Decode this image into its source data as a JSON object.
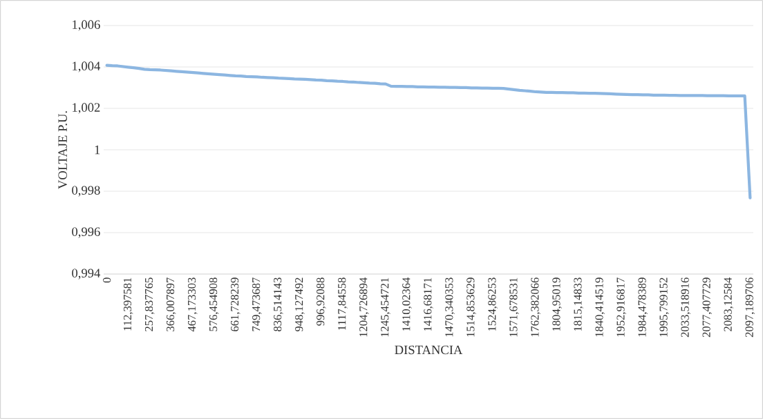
{
  "chart_data": {
    "type": "line",
    "xlabel": "DISTANCIA",
    "ylabel": "VOLTAJE P.U.",
    "categories": [
      "0",
      null,
      null,
      null,
      "112,397581",
      null,
      null,
      null,
      "257,837765",
      null,
      null,
      null,
      "366,007897",
      null,
      null,
      null,
      "467,173303",
      null,
      null,
      null,
      "576,454908",
      null,
      null,
      null,
      "661,728239",
      null,
      null,
      null,
      "749,473687",
      null,
      null,
      null,
      "836,514143",
      null,
      null,
      null,
      "948,127492",
      null,
      null,
      null,
      "996,92088",
      null,
      null,
      null,
      "1117,84558",
      null,
      null,
      null,
      "1204,726894",
      null,
      null,
      null,
      "1245,454721",
      null,
      null,
      null,
      "1410,02364",
      null,
      null,
      null,
      "1416,68171",
      null,
      null,
      null,
      "1470,340353",
      null,
      null,
      null,
      "1514,853629",
      null,
      null,
      null,
      "1524,86253",
      null,
      null,
      null,
      "1571,678531",
      null,
      null,
      null,
      "1762,382066",
      null,
      null,
      null,
      "1804,95019",
      null,
      null,
      null,
      "1815,14833",
      null,
      null,
      null,
      "1840,414519",
      null,
      null,
      null,
      "1952,916817",
      null,
      null,
      null,
      "1984,478389",
      null,
      null,
      null,
      "1995,799152",
      null,
      null,
      null,
      "2033,518916",
      null,
      null,
      null,
      "2077,407729",
      null,
      null,
      null,
      "2083,12584",
      null,
      null,
      null,
      "2097,189706"
    ],
    "series": [
      {
        "color": "#8cb6e1",
        "values": [
          1.00408,
          1.00406,
          1.00405,
          1.00402,
          1.00399,
          1.00396,
          1.00393,
          1.00389,
          1.00387,
          1.00386,
          1.00385,
          1.00383,
          1.00381,
          1.00379,
          1.00377,
          1.00375,
          1.00373,
          1.00371,
          1.00369,
          1.00367,
          1.00365,
          1.00363,
          1.00361,
          1.00359,
          1.00357,
          1.00356,
          1.00354,
          1.00353,
          1.00352,
          1.0035,
          1.00349,
          1.00348,
          1.00346,
          1.00345,
          1.00344,
          1.00342,
          1.00341,
          1.0034,
          1.00339,
          1.00337,
          1.00336,
          1.00334,
          1.00333,
          1.00331,
          1.0033,
          1.00328,
          1.00327,
          1.00325,
          1.00324,
          1.00322,
          1.00321,
          1.00319,
          1.00318,
          1.00307,
          1.00306,
          1.00306,
          1.00305,
          1.00305,
          1.00304,
          1.00304,
          1.00303,
          1.00303,
          1.00302,
          1.00302,
          1.00301,
          1.00301,
          1.003,
          1.003,
          1.00299,
          1.00299,
          1.00298,
          1.00298,
          1.00297,
          1.00297,
          1.00296,
          1.00293,
          1.0029,
          1.00287,
          1.00285,
          1.00283,
          1.0028,
          1.00279,
          1.00277,
          1.00277,
          1.00276,
          1.00276,
          1.00275,
          1.00275,
          1.00274,
          1.00274,
          1.00273,
          1.00273,
          1.00272,
          1.00271,
          1.0027,
          1.00269,
          1.00268,
          1.00267,
          1.00266,
          1.00266,
          1.00265,
          1.00265,
          1.00264,
          1.00264,
          1.00264,
          1.00263,
          1.00263,
          1.00262,
          1.00262,
          1.00262,
          1.00262,
          1.00262,
          1.00261,
          1.00261,
          1.00261,
          1.00261,
          1.0026,
          1.0026,
          1.0026,
          1.0026,
          0.99768
        ]
      }
    ],
    "ylim": [
      0.994,
      1.006
    ],
    "yticks": [
      {
        "value": 0.994,
        "label": "0,994"
      },
      {
        "value": 0.996,
        "label": "0,996"
      },
      {
        "value": 0.998,
        "label": "0,998"
      },
      {
        "value": 1,
        "label": "1"
      },
      {
        "value": 1.002,
        "label": "1,002"
      },
      {
        "value": 1.004,
        "label": "1,004"
      },
      {
        "value": 1.006,
        "label": "1,006"
      }
    ],
    "grid": "y",
    "legend": false,
    "marker": "none",
    "line_style": "solid"
  }
}
